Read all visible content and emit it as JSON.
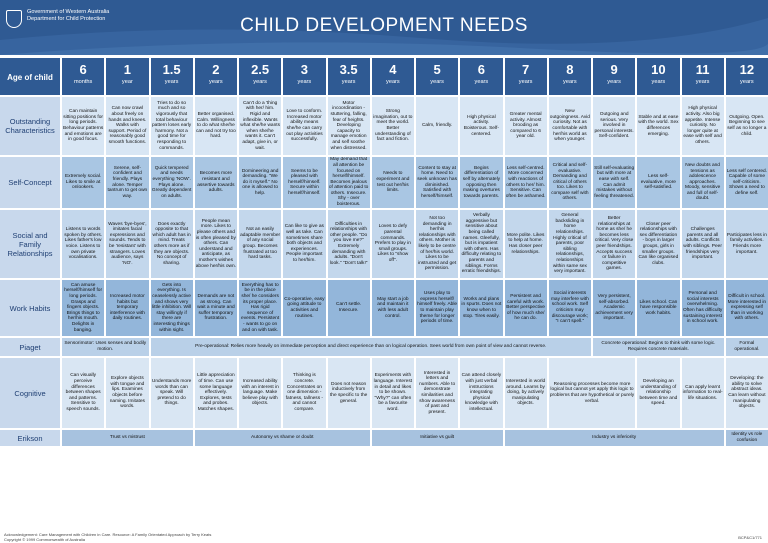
{
  "header": {
    "logo_line1": "Government of Western Australia",
    "logo_line2": "Department for Child Protection",
    "title": "CHILD DEVELOPMENT NEEDS"
  },
  "age_label": "Age of child",
  "ages": [
    {
      "num": "6",
      "unit": "months"
    },
    {
      "num": "1",
      "unit": "year"
    },
    {
      "num": "1.5",
      "unit": "years"
    },
    {
      "num": "2",
      "unit": "years"
    },
    {
      "num": "2.5",
      "unit": "years"
    },
    {
      "num": "3",
      "unit": "years"
    },
    {
      "num": "3.5",
      "unit": "years"
    },
    {
      "num": "4",
      "unit": "years"
    },
    {
      "num": "5",
      "unit": "years"
    },
    {
      "num": "6",
      "unit": "years"
    },
    {
      "num": "7",
      "unit": "years"
    },
    {
      "num": "8",
      "unit": "years"
    },
    {
      "num": "9",
      "unit": "years"
    },
    {
      "num": "10",
      "unit": "years"
    },
    {
      "num": "11",
      "unit": "years"
    },
    {
      "num": "12",
      "unit": "years"
    }
  ],
  "rows": [
    {
      "label": "Outstanding Characteristics",
      "cells": [
        "Can maintain sitting positions for long periods. Behaviour patterns and emotions are in good focus.",
        "Can now crawl about freely on hands and knees. Walks with support. Period of reasonably good smooth functions.",
        "Tries to do so much and so vigorously that total behaviour pattern loses early harmony. Not a good time for responding to commands.",
        "Better organised. Calm. Willingness to do what she/he can and not try too hard.",
        "Can't do a 'thing with her/ him. Rigid and inflexible. Wants what she/he wants when she/he wants it. Can't adapt, give in, or wait.",
        "Love to conform. Increased motor ability means she/he can carry out play activities successfully.",
        "Motor incoordination - stuttering, falling, fear of heights. Developing capacity to manage emotion and self soothe when distressed.",
        "Strong imagination, out to meet the world. Better understanding of fact and fiction.",
        "Calm, friendly.",
        "High physical activity. Boisterous. Self-centered.",
        "Greater mental activity. Almost brooding as compared to 6 year old.",
        "New outgoingness. Avid curiosity. Not as comfortable with her/his world as when younger.",
        "Outgoing and serious. Very involved in personal interests. Self-confident.",
        "Stable and at ease with the world. Sex differences emerging.",
        "High physical activity. Also big appetite. Intense curiosity. No longer quite at ease with self and others.",
        "Outgoing. Open. Beginning to see self as no longer a child."
      ]
    },
    {
      "label": "Self-Concept",
      "cells": [
        "Extremely social. Likes to smile at onlookers.",
        "Serene, self-confident and friendly. Plays alone. Temper tantrum to get own way.",
        "Quick tempered and needs everything 'NOW'. Plays alone. Greatly dependent on adults.",
        "Becomes more resistant and assertive towards adults.",
        "Domineering and demanding. \"We do it myself.\" No one is allowed to help.",
        "Seems to be pleased with herself/himself. Secure within herself/himself.",
        "May demand that all attention be focused on herself/himself. Becomes jealous of attention paid to others. Insecure. Shy - over boisterous.",
        "Needs to experiment and test out her/his limits.",
        "Content to stay at home. Need to seek unknown has diminished. Satisfied with herself/himself.",
        "Begins differentiation of self by alternately opposing then making overtures towards parents.",
        "Less self-centred. More concerned with reactions of others to her/ him. Sensitive. Can often be ashamed.",
        "Critical and self-evaluative. Demanding and critical of others too. Likes to compare self with others.",
        "Still self-evaluating but with more at ease with self. Can admit mistakes without feeling threatened.",
        "Less self-evaluative, more self-satisfied.",
        "New doubts and tensions as adolescence approaches. Moody, sensitive and full of self-doubt.",
        "Less self centered. Capable of some self-criticism. Shows a need to define self."
      ]
    },
    {
      "label": "Social and Family Relationships",
      "cells": [
        "Listens to words spoken by others. Likes father's low voice. Listens to own private vocalisations.",
        "Waves 'bye-byes', imitates facial expressions and sounds. Tends to be 'resistant' with strangers. Loves audience, says 'NO'.",
        "Does exactly opposite to that which adult has in mind. Treats others more as if they are objects. No concept of sharing.",
        "People mean more. Likes to please others and is often pleased by others. Can understand and anticipate, as mother's wishes above her/his own.",
        "Not an easily adaptable member of any social group. Becomes frustrated at too hard tasks.",
        "Can like to give as well as take. Can sometimes share both objects and experiences. People important to her/him.",
        "Difficulties in relationships with other people. \"Do you love me?\" Extremely demanding with adults. \"Don't look.\" \"Don't talk!\"",
        "Loves to defy parental commands. Prefers to play in small groups. Likes to \"show off\".",
        "Not too demanding in her/his relationships with others. Mother is likely to be centre of her/his world. Likes to be instructed and get permission.",
        "Verbally aggressive but sensitive about being called names. Gleefully, but is impatient with others. Has difficulty relating to parents and siblings. Forms erratic friendships.",
        "More polite. Likes to help at home. Has closer peer relationships.",
        "General backsliding in home relationships. Highly critical of parents, poor sibling relationships, relationships within same sex very important.",
        "Better relationships at home as she/ he becomes less critical. Very close peer friendships. Accepts success or failure in competitive games.",
        "Closer peer relationships with sex differentiation - boys in larger groups, girls in smaller groups. Can like organised clubs.",
        "Challenges parents and all adults. Conflicts with siblings. Peer friendships very important.",
        "Participates less in family activities. Friends more important."
      ]
    },
    {
      "label": "Work Habits",
      "cells": [
        "Can amuse herself/himself for long periods. Grasps and fingers objects. Brings things to her/his mouth. Delights in banging.",
        "Increased motor habits but temporary interference with daily routines.",
        "Gets into everything. Is ceaselessly active and shows very little inhibition. Will stay willingly if there are interesting things within sight.",
        "Demands are not as strong. Can wait a minute and suffer temporary frustration.",
        "Everything has to be in the place she/ he considers its proper place. Has rigid sequence of events. Persistent - wants to go on and on with task.",
        "Co-operative, easy going attitude to activities and routines.",
        "Can't settle. Insecure.",
        "May start a job and maintain it with less adult control.",
        "Uses play to express herself/ himself freely. Able to maintain play theme for longer periods of time.",
        "Works and plans in spurts. Does not know when to stop. Tires easily.",
        "Persistent and careful with work. Better perspective of how much she/ he can do.",
        "Social interests may interfere with school work. Self criticism may discourage work; \"I can't spell.\"",
        "Very persistent, self-absorbed. Academic achievement very important.",
        "Likes school. Can have responsible work habits.",
        "Personal and social interests overwhelming. Often has difficulty sustaining interest in school work.",
        "Difficult in school. More interested in expressing self than in working with others."
      ]
    }
  ],
  "piaget": {
    "label": "Piaget",
    "sensorimotor": "Sensorimotor: Uses senses and bodily motion.",
    "preop": "Pre-operational: Relies more heavily on immediate perception and direct experience than on logical operation. Sees world from own point of view and cannot reverse.",
    "concrete": "Concrete operational: Begins to think with some logic. Requires concrete materials.",
    "formal": "Formal operational."
  },
  "cognitive": {
    "label": "Cognitive",
    "cells": [
      "Can visually perceive differences between shapes and patterns. Sensitive to speech sounds.",
      "Explore objects with tongue and lips. Examines objects before naming. Imitates words.",
      "Understands more words than can speak. Will pretend to do things.",
      "Little appreciation of time. Can use some language effectively. Explores, tests and probes. Matches shapes.",
      "Increased ability with an interest in language. Make believe play with objects.",
      "Thinking is concrete. Concentrates on one dimension - fatness, tallness - and cannot compare.",
      "Does not reason inductively from the specific to the general.",
      "Experiments with language. Interest in detail and likes to be shown. \"Why?\" can often be a favourite word.",
      "Interested in letters and numbers. Able to demonstrate similarities and show awareness of past and present.",
      "Can attend closely with just verbal instructions integrating physical knowledge with intellectual.",
      "Interested in world around. Learns by doing, by actively manipulating objects.",
      "Reasoning processes become more logical but cannot yet apply this logic to problems that are hypothetical or purely verbal.",
      "Developing an understanding of relationship between time and speed.",
      "Can apply learnt information to real-life situations.",
      "Developing: the ability to solve abstract ideas. Can learn without manipulating objects."
    ]
  },
  "erikson": {
    "label": "Erikson",
    "trust": "Trust vs mistrust",
    "autonomy": "Autonomy vs shame or doubt",
    "initiative": "Initiative vs guilt",
    "industry": "Industry vs inferiority",
    "identity": "Identity vs role confusion"
  },
  "footer": {
    "line1": "Acknowledgement: Care Management with Children in Care. Resource: A Family Orientated Approach by Terry Keats",
    "line2": "Copyright © 1999 Commonwealth of Australia",
    "page": "BCP&C1/771"
  },
  "colors": {
    "header": "#2f5a93",
    "label_bg": "#c8d8ec",
    "label_text": "#1f3f73",
    "row1": "#d8e6f4",
    "row2": "#a9c6e3",
    "row3": "#c3d7ec",
    "row4": "#93b6da",
    "piaget": "#b9d0e8",
    "cognitive": "#d9e6f3",
    "erikson": "#a7c2df"
  }
}
